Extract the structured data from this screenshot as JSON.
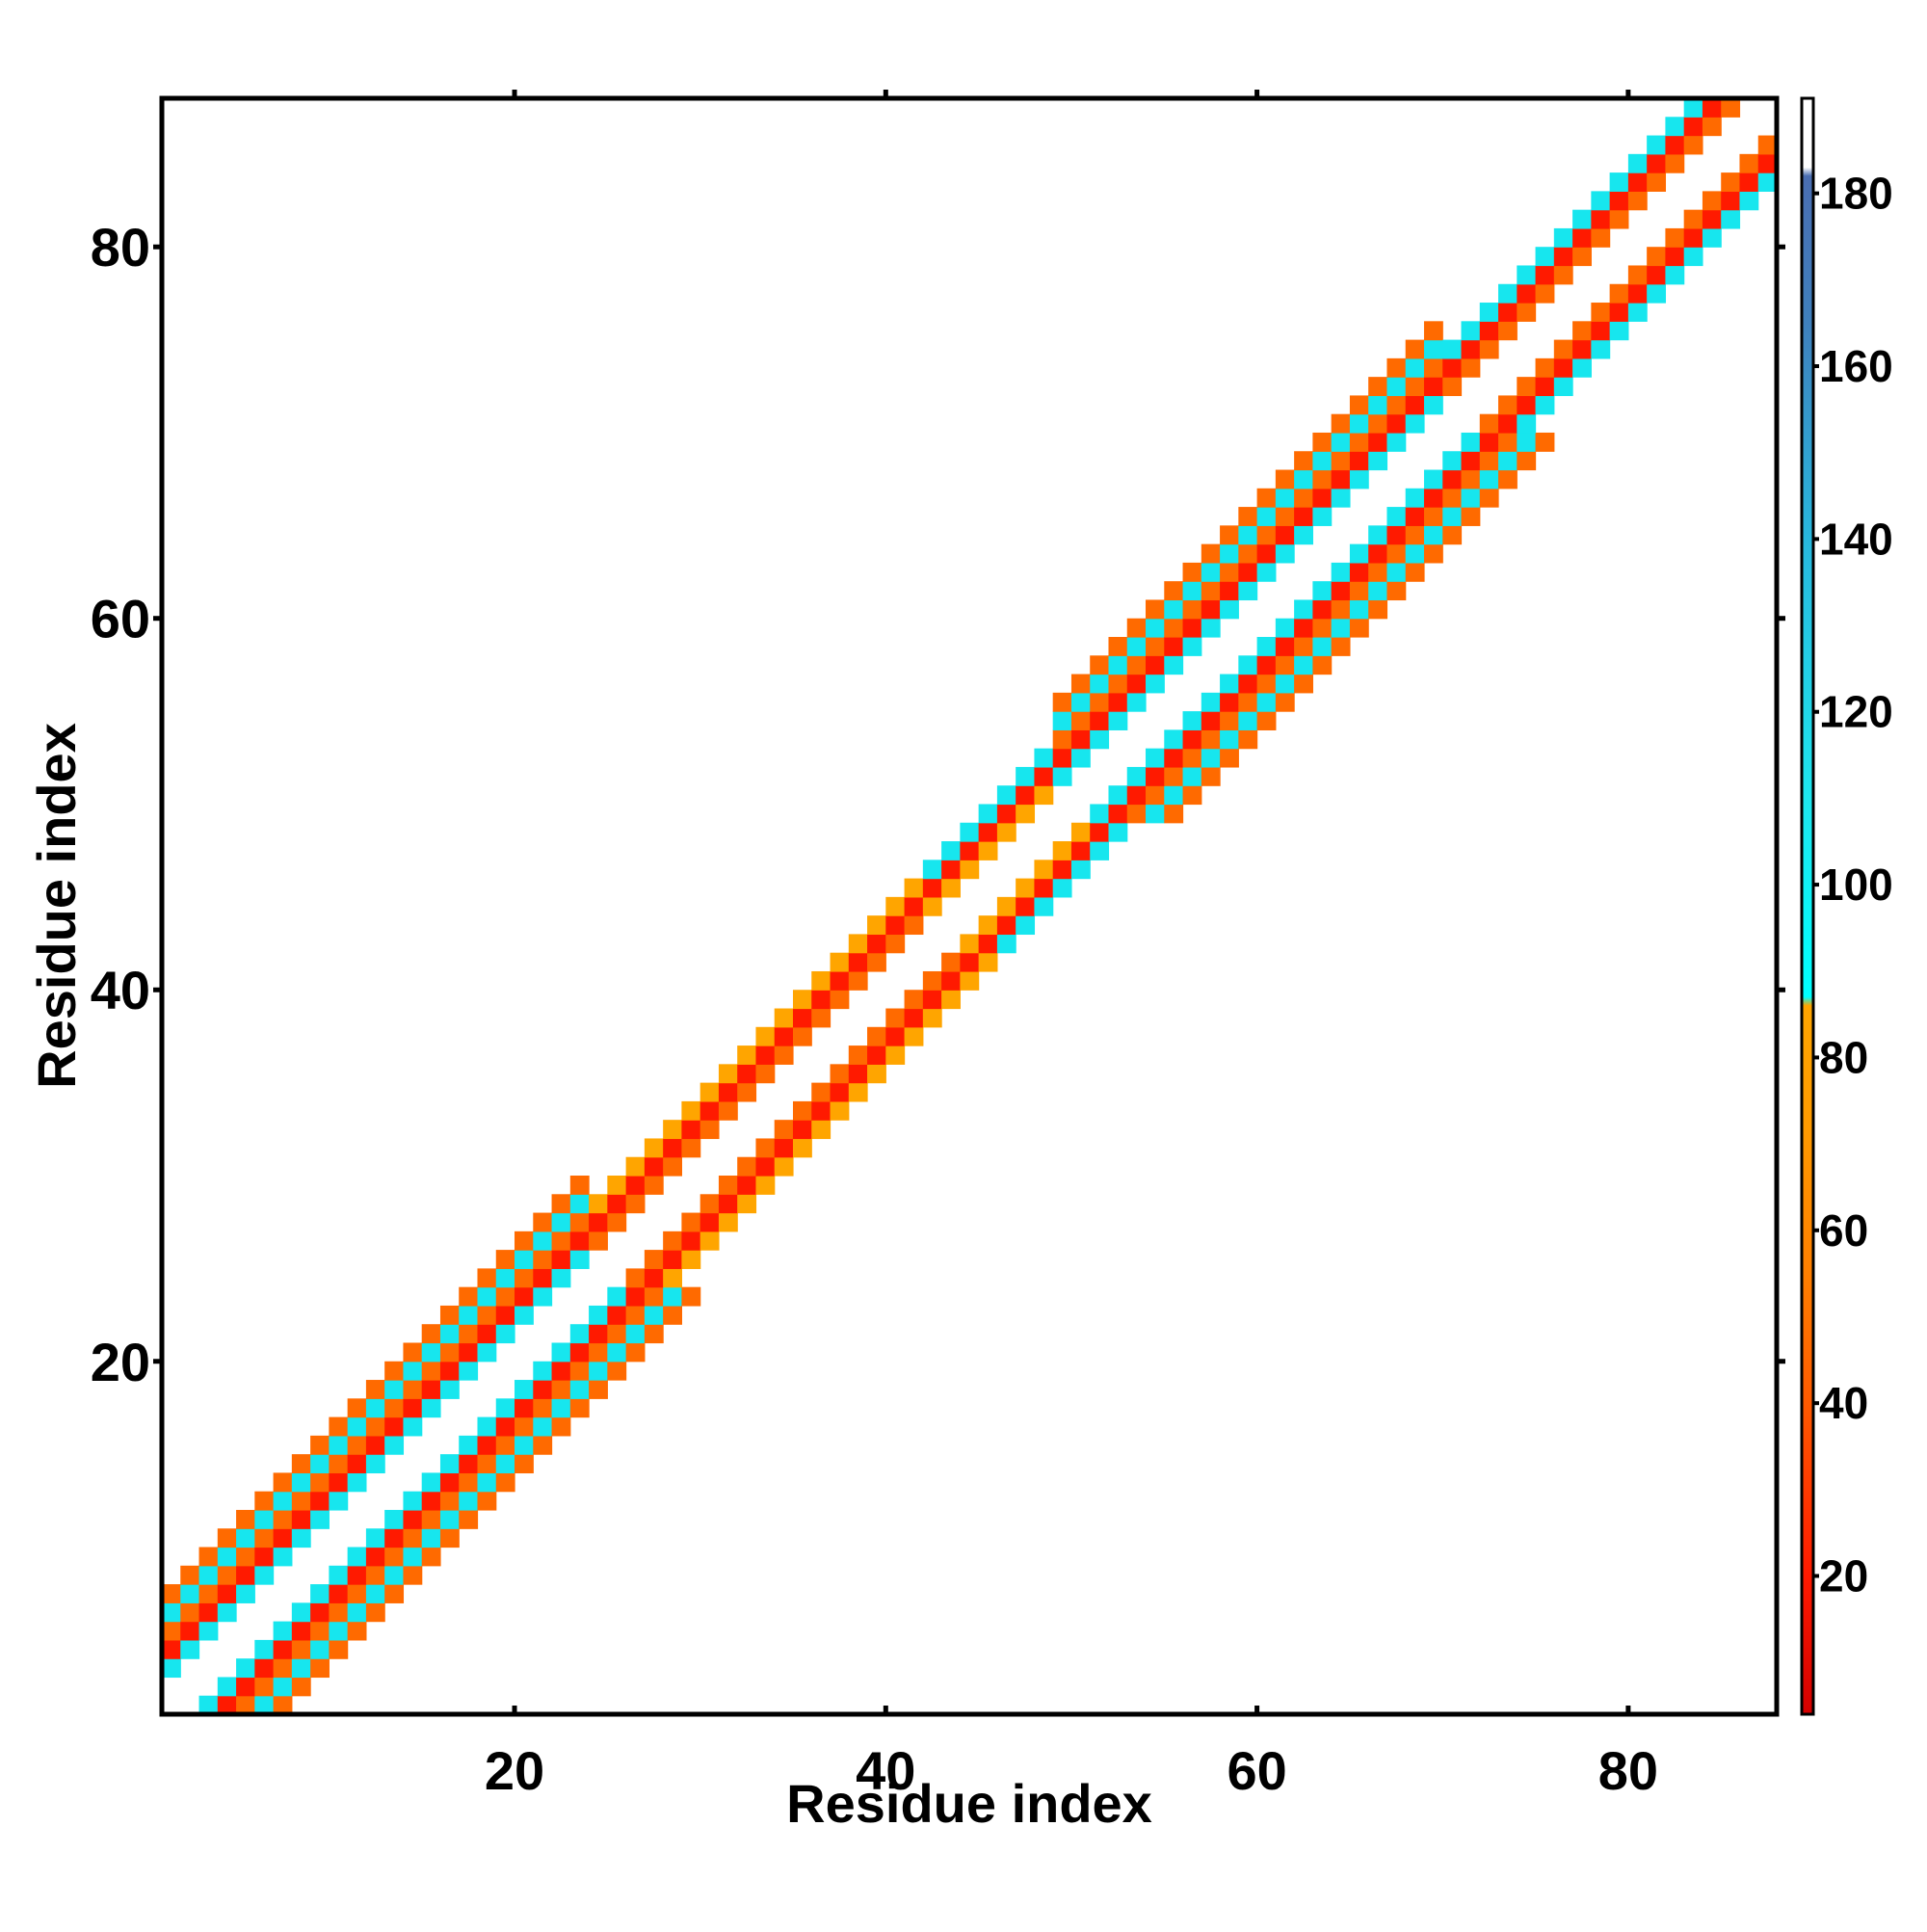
{
  "chart_data": {
    "type": "heatmap",
    "title": "",
    "xlabel": "Residue index",
    "ylabel": "Residue index",
    "xlim": [
      1,
      88
    ],
    "ylim": [
      1,
      88
    ],
    "x_ticks": [
      20,
      40,
      60,
      80
    ],
    "y_ticks": [
      20,
      40,
      60,
      80
    ],
    "grid": false,
    "colorbar": {
      "range": [
        4,
        191
      ],
      "ticks": [
        20,
        40,
        60,
        80,
        100,
        120,
        140,
        160,
        180
      ],
      "color_stops": [
        {
          "value": 4,
          "color": "#d40000"
        },
        {
          "value": 20,
          "color": "#ff1a00"
        },
        {
          "value": 40,
          "color": "#ff5a00"
        },
        {
          "value": 55,
          "color": "#ff7f00"
        },
        {
          "value": 72,
          "color": "#ff9a00"
        },
        {
          "value": 86,
          "color": "#ffa500"
        },
        {
          "value": 87,
          "color": "#00ffff"
        },
        {
          "value": 110,
          "color": "#1ee6ee"
        },
        {
          "value": 140,
          "color": "#28b8de"
        },
        {
          "value": 165,
          "color": "#3f80bd"
        },
        {
          "value": 182,
          "color": "#4a6eb2"
        },
        {
          "value": 183,
          "color": "#ffffff"
        },
        {
          "value": 191,
          "color": "#ffffff"
        }
      ]
    },
    "band_segments": [
      {
        "from": 1,
        "to": 24,
        "offsets": [
          [
            2,
            "cyan",
            95
          ],
          [
            3,
            "red",
            20
          ],
          [
            4,
            "orange",
            50
          ],
          [
            5,
            "cyan",
            95
          ],
          [
            6,
            "orange",
            50
          ]
        ]
      },
      {
        "from": 24,
        "to": 42,
        "offsets": [
          [
            2,
            "orange",
            50
          ],
          [
            3,
            "red",
            20
          ],
          [
            4,
            "gold",
            75
          ]
        ]
      },
      {
        "from": 42,
        "to": 49,
        "offsets": [
          [
            2,
            "gold",
            75
          ],
          [
            3,
            "red",
            20
          ],
          [
            4,
            "cyan",
            110
          ]
        ]
      },
      {
        "from": 49,
        "to": 70,
        "offsets": [
          [
            2,
            "cyan",
            95
          ],
          [
            3,
            "red",
            20
          ],
          [
            4,
            "orange",
            50
          ],
          [
            5,
            "cyan",
            95
          ],
          [
            6,
            "orange",
            50
          ]
        ]
      },
      {
        "from": 70,
        "to": 89,
        "offsets": [
          [
            2,
            "orange",
            50
          ],
          [
            3,
            "red",
            20
          ],
          [
            4,
            "cyan",
            95
          ]
        ]
      }
    ]
  }
}
